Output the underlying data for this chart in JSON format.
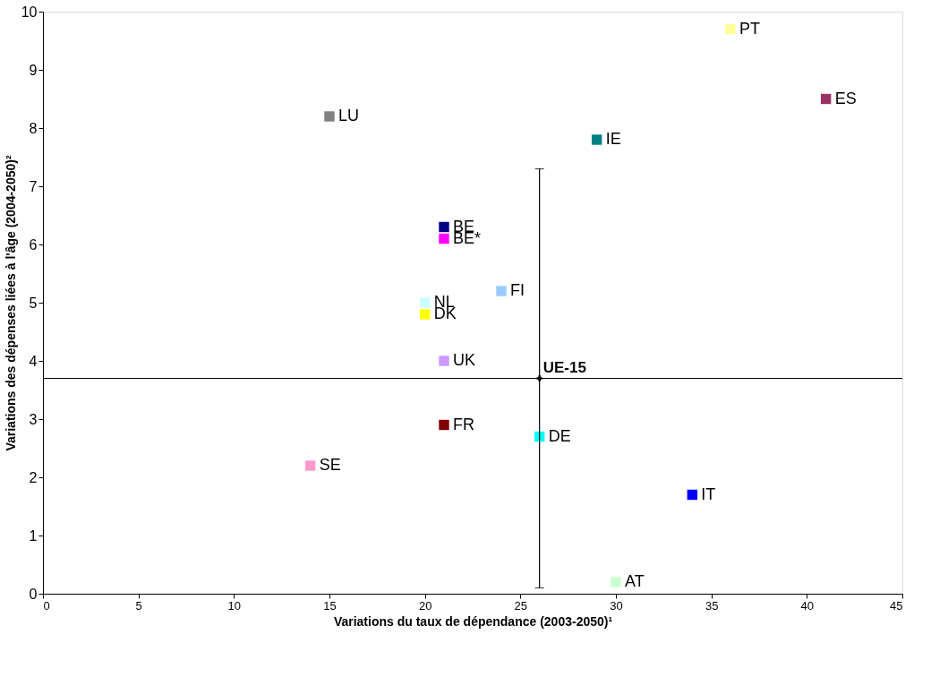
{
  "chart_data": {
    "type": "scatter",
    "xlabel": "Variations du taux de dépendance (2003-2050)¹",
    "ylabel": "Variations des dépenses liées à l'âge (2004-2050)²",
    "xlim": [
      0,
      45
    ],
    "xticks": [
      0,
      5,
      10,
      15,
      20,
      25,
      30,
      35,
      40,
      45
    ],
    "ylim": [
      0,
      10
    ],
    "yticks": [
      0,
      1,
      2,
      3,
      4,
      5,
      6,
      7,
      8,
      9,
      10
    ],
    "grid": false,
    "legend": false,
    "marker": "square",
    "series": [
      {
        "name": "PT",
        "color": "#ffff99",
        "x": [
          36
        ],
        "values": [
          9.7
        ]
      },
      {
        "name": "ES",
        "color": "#993366",
        "x": [
          41
        ],
        "values": [
          8.5
        ]
      },
      {
        "name": "LU",
        "color": "#808080",
        "x": [
          15
        ],
        "values": [
          8.2
        ]
      },
      {
        "name": "IE",
        "color": "#008080",
        "x": [
          29
        ],
        "values": [
          7.8
        ]
      },
      {
        "name": "BE",
        "color": "#000080",
        "x": [
          21
        ],
        "values": [
          6.3
        ]
      },
      {
        "name": "BE*",
        "color": "#ff00ff",
        "x": [
          21
        ],
        "values": [
          6.1
        ]
      },
      {
        "name": "FI",
        "color": "#99ccff",
        "x": [
          24
        ],
        "values": [
          5.2
        ]
      },
      {
        "name": "NL",
        "color": "#ccffff",
        "x": [
          20
        ],
        "values": [
          5.0
        ]
      },
      {
        "name": "DK",
        "color": "#ffff00",
        "x": [
          20
        ],
        "values": [
          4.8
        ]
      },
      {
        "name": "UK",
        "color": "#cc99ff",
        "x": [
          21
        ],
        "values": [
          4.0
        ]
      },
      {
        "name": "FR",
        "color": "#800000",
        "x": [
          21
        ],
        "values": [
          2.9
        ]
      },
      {
        "name": "DE",
        "color": "#00ffff",
        "x": [
          26
        ],
        "values": [
          2.7
        ]
      },
      {
        "name": "SE",
        "color": "#ff99cc",
        "x": [
          14
        ],
        "values": [
          2.2
        ]
      },
      {
        "name": "IT",
        "color": "#0000ff",
        "x": [
          34
        ],
        "values": [
          1.7
        ]
      },
      {
        "name": "AT",
        "color": "#ccffcc",
        "x": [
          30
        ],
        "values": [
          0.2
        ]
      },
      {
        "name": "UE-15",
        "color": "#000000",
        "marker": "cross",
        "x": [
          26
        ],
        "values": [
          3.7
        ],
        "errors": [
          [
            0.1,
            7.3
          ]
        ]
      }
    ],
    "ref_lines": [
      {
        "axis": "y",
        "value": 3.7,
        "color": "#000000"
      }
    ]
  }
}
